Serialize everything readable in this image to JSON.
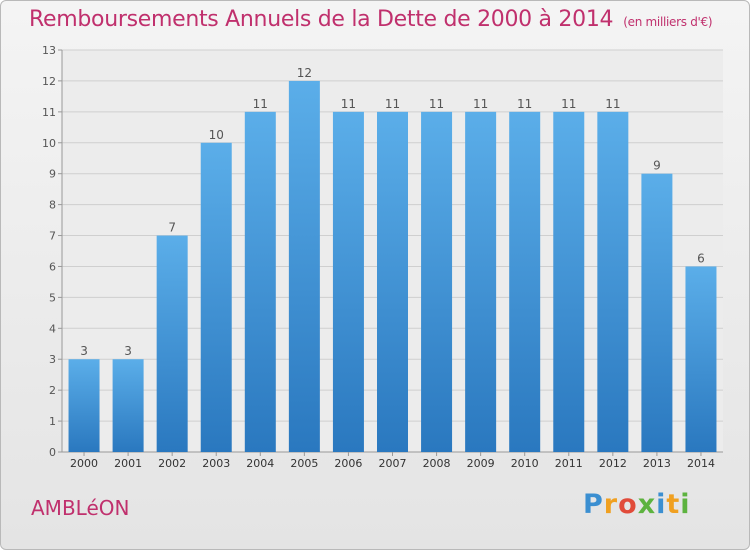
{
  "header": {
    "title": "Remboursements Annuels de la Dette de 2000 à 2014",
    "subtitle": "(en milliers d'€)"
  },
  "commune": "AMBLéON",
  "brand": {
    "name": "Proxiti",
    "letters": [
      "P",
      "r",
      "o",
      "x",
      "i",
      "t",
      "i"
    ],
    "letter_colors": [
      "#3b8fd1",
      "#f0a020",
      "#e14b3a",
      "#5db33f",
      "#3b8fd1",
      "#f0a020",
      "#5db33f"
    ]
  },
  "chart_data": {
    "type": "bar",
    "categories": [
      "2000",
      "2001",
      "2002",
      "2003",
      "2004",
      "2005",
      "2006",
      "2007",
      "2008",
      "2009",
      "2010",
      "2011",
      "2012",
      "2013",
      "2014"
    ],
    "values": [
      3,
      3,
      7,
      10,
      11,
      12,
      11,
      11,
      11,
      11,
      11,
      11,
      11,
      9,
      6
    ],
    "ylim": [
      0,
      13
    ],
    "yticks": [
      0,
      1,
      2,
      3,
      4,
      5,
      6,
      7,
      8,
      9,
      10,
      11,
      12,
      13
    ],
    "grid": true,
    "colors": {
      "bar_top": "#5baee9",
      "bar_bottom": "#2a78bf",
      "grid": "#cfcfcf",
      "label": "#555555"
    }
  }
}
